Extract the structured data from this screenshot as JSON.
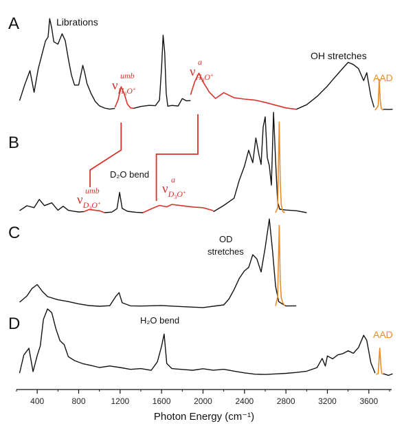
{
  "chart_data": {
    "type": "line",
    "xlabel": "Photon Energy (cm⁻¹)",
    "xlim": [
      200,
      3820
    ],
    "ticks": [
      400,
      800,
      1200,
      1600,
      2000,
      2400,
      2800,
      3200,
      3600
    ],
    "tick_labels": [
      "400",
      "800",
      "1200",
      "1600",
      "2000",
      "2400",
      "2800",
      "3200",
      "3600"
    ],
    "colors": {
      "trace": "#111111",
      "h3o_band": "#d8322a",
      "aad": "#f08a24",
      "connector": "#d8322a"
    },
    "panels": [
      {
        "label": "A",
        "annotations": {
          "librations": "Librations",
          "oh_stretches": "OH stretches",
          "aad": "AAD"
        },
        "series": [
          {
            "color": "black",
            "x": [
              230,
              280,
              330,
              370,
              410,
              450,
              480,
              505,
              520,
              540,
              560,
              600,
              640,
              670,
              700,
              730,
              760,
              800,
              840,
              860,
              880,
              920,
              960,
              1000,
              1050,
              1100,
              1150
            ],
            "y": [
              0.12,
              0.28,
              0.42,
              0.22,
              0.45,
              0.62,
              0.72,
              0.8,
              0.98,
              0.88,
              0.74,
              0.7,
              0.82,
              0.74,
              0.55,
              0.38,
              0.3,
              0.28,
              0.48,
              0.42,
              0.3,
              0.18,
              0.12,
              0.08,
              0.06,
              0.05,
              0.04
            ]
          },
          {
            "color": "red",
            "x": [
              1150,
              1180,
              1210,
              1240,
              1270,
              1300,
              1330
            ],
            "y": [
              0.05,
              0.12,
              0.26,
              0.18,
              0.1,
              0.05,
              0.04
            ]
          },
          {
            "color": "black",
            "x": [
              1330,
              1400,
              1480,
              1540,
              1580,
              1600,
              1615,
              1630,
              1645,
              1660,
              1700,
              1760,
              1800,
              1840,
              1880
            ],
            "y": [
              0.04,
              0.05,
              0.06,
              0.07,
              0.12,
              0.45,
              0.8,
              0.62,
              0.2,
              0.08,
              0.06,
              0.08,
              0.14,
              0.1,
              0.12
            ]
          },
          {
            "color": "red",
            "x": [
              1880,
              1920,
              1960,
              2000,
              2060,
              2120,
              2200,
              2300,
              2400,
              2500,
              2600,
              2700,
              2800,
              2900
            ],
            "y": [
              0.18,
              0.32,
              0.4,
              0.32,
              0.2,
              0.16,
              0.2,
              0.14,
              0.12,
              0.11,
              0.09,
              0.07,
              0.05,
              0.03
            ]
          },
          {
            "color": "black",
            "x": [
              2900,
              3000,
              3100,
              3200,
              3250,
              3300,
              3350,
              3400,
              3450,
              3500,
              3550,
              3580,
              3620,
              3650
            ],
            "y": [
              0.03,
              0.08,
              0.16,
              0.26,
              0.32,
              0.38,
              0.44,
              0.5,
              0.48,
              0.44,
              0.32,
              0.42,
              0.16,
              0.05
            ]
          },
          {
            "color": "orange",
            "x": [
              3660,
              3690,
              3700,
              3710,
              3720,
              3740
            ],
            "y": [
              0.02,
              0.05,
              0.34,
              0.12,
              0.04,
              0.02
            ]
          },
          {
            "color": "black",
            "x": [
              3740,
              3790,
              3830
            ],
            "y": [
              0.03,
              0.02,
              0.03
            ]
          }
        ]
      },
      {
        "label": "B",
        "annotations": {
          "d2o_bend": "D₂O bend"
        },
        "series": [
          {
            "color": "black",
            "x": [
              230,
              300,
              370,
              420,
              470,
              540,
              600,
              650,
              700,
              750,
              800,
              850
            ],
            "y": [
              0.04,
              0.08,
              0.06,
              0.14,
              0.08,
              0.1,
              0.06,
              0.1,
              0.06,
              0.05,
              0.04,
              0.03
            ]
          },
          {
            "color": "red",
            "x": [
              850,
              900,
              950,
              1000,
              1050
            ],
            "y": [
              0.03,
              0.05,
              0.04,
              0.03,
              0.02
            ]
          },
          {
            "color": "black",
            "x": [
              1050,
              1120,
              1170,
              1195,
              1220,
              1270,
              1350,
              1420
            ],
            "y": [
              0.02,
              0.03,
              0.06,
              0.22,
              0.06,
              0.03,
              0.02,
              0.02
            ]
          },
          {
            "color": "red",
            "x": [
              1420,
              1500,
              1580,
              1650,
              1700,
              1800,
              1900,
              2000,
              2100
            ],
            "y": [
              0.02,
              0.06,
              0.1,
              0.08,
              0.1,
              0.08,
              0.06,
              0.05,
              0.04
            ]
          },
          {
            "color": "black",
            "x": [
              2100,
              2200,
              2300,
              2350,
              2400,
              2440,
              2480,
              2510,
              2540,
              2560,
              2580,
              2600,
              2620,
              2640,
              2660,
              2680,
              2700,
              2720,
              2740,
              2800,
              2900,
              3000
            ],
            "y": [
              0.03,
              0.08,
              0.16,
              0.34,
              0.48,
              0.62,
              0.52,
              0.74,
              0.58,
              0.48,
              0.86,
              0.96,
              0.58,
              0.48,
              0.28,
              1.0,
              0.52,
              0.14,
              0.06,
              0.03,
              0.02,
              0.02
            ]
          },
          {
            "color": "orange",
            "x": [
              2700,
              2720,
              2735,
              2745,
              2755,
              2770,
              2790
            ],
            "y": [
              0.02,
              0.08,
              0.92,
              0.3,
              0.1,
              0.04,
              0.02
            ]
          }
        ]
      },
      {
        "label": "C",
        "annotations": {
          "od_stretches_1": "OD",
          "od_stretches_2": "stretches"
        },
        "series": [
          {
            "color": "black",
            "x": [
              230,
              300,
              350,
              400,
              450,
              500,
              600,
              700,
              800,
              900,
              1000,
              1100,
              1160,
              1190,
              1220,
              1300,
              1400,
              1600,
              1800,
              2000,
              2200,
              2250,
              2300,
              2350,
              2400,
              2440,
              2480,
              2520,
              2560,
              2600,
              2640,
              2670,
              2700,
              2730,
              2760,
              2800,
              2900
            ],
            "y": [
              0.06,
              0.14,
              0.22,
              0.26,
              0.18,
              0.12,
              0.08,
              0.06,
              0.04,
              0.03,
              0.03,
              0.04,
              0.12,
              0.16,
              0.06,
              0.03,
              0.02,
              0.02,
              0.02,
              0.02,
              0.04,
              0.1,
              0.2,
              0.32,
              0.4,
              0.46,
              0.58,
              0.52,
              0.4,
              0.66,
              0.98,
              0.62,
              0.24,
              0.08,
              0.04,
              0.03,
              0.02
            ]
          },
          {
            "color": "orange",
            "x": [
              2700,
              2720,
              2735,
              2745,
              2755,
              2770,
              2790
            ],
            "y": [
              0.02,
              0.1,
              0.9,
              0.3,
              0.1,
              0.04,
              0.02
            ]
          }
        ]
      },
      {
        "label": "D",
        "annotations": {
          "h2o_bend": "H₂O bend",
          "aad": "AAD"
        },
        "series": [
          {
            "color": "black",
            "x": [
              230,
              270,
              320,
              360,
              400,
              430,
              460,
              500,
              540,
              580,
              620,
              660,
              700,
              760,
              840,
              920,
              1000,
              1100,
              1200,
              1300,
              1400,
              1500,
              1560,
              1600,
              1625,
              1650,
              1700,
              1800,
              1900,
              2000,
              2100,
              2200,
              2300,
              2400,
              2500,
              2600,
              2700,
              2800,
              2900,
              3000,
              3100,
              3150,
              3180,
              3200,
              3250,
              3300,
              3350,
              3400,
              3450,
              3500,
              3550,
              3580,
              3620,
              3660
            ],
            "y": [
              0.04,
              0.3,
              0.4,
              0.08,
              0.3,
              0.45,
              0.85,
              1.0,
              0.92,
              0.7,
              0.52,
              0.46,
              0.3,
              0.22,
              0.18,
              0.16,
              0.12,
              0.14,
              0.12,
              0.1,
              0.12,
              0.1,
              0.2,
              0.46,
              0.6,
              0.2,
              0.12,
              0.1,
              0.08,
              0.1,
              0.08,
              0.1,
              0.08,
              0.06,
              0.04,
              0.03,
              0.03,
              0.03,
              0.04,
              0.06,
              0.12,
              0.26,
              0.16,
              0.3,
              0.26,
              0.32,
              0.34,
              0.38,
              0.34,
              0.42,
              0.6,
              0.52,
              0.2,
              0.04
            ]
          },
          {
            "color": "orange",
            "x": [
              3670,
              3690,
              3705,
              3715,
              3725,
              3740
            ],
            "y": [
              0.02,
              0.05,
              0.42,
              0.14,
              0.04,
              0.02
            ]
          },
          {
            "color": "black",
            "x": [
              3740,
              3790,
              3830
            ],
            "y": [
              0.03,
              0.02,
              0.03
            ]
          }
        ]
      }
    ]
  }
}
